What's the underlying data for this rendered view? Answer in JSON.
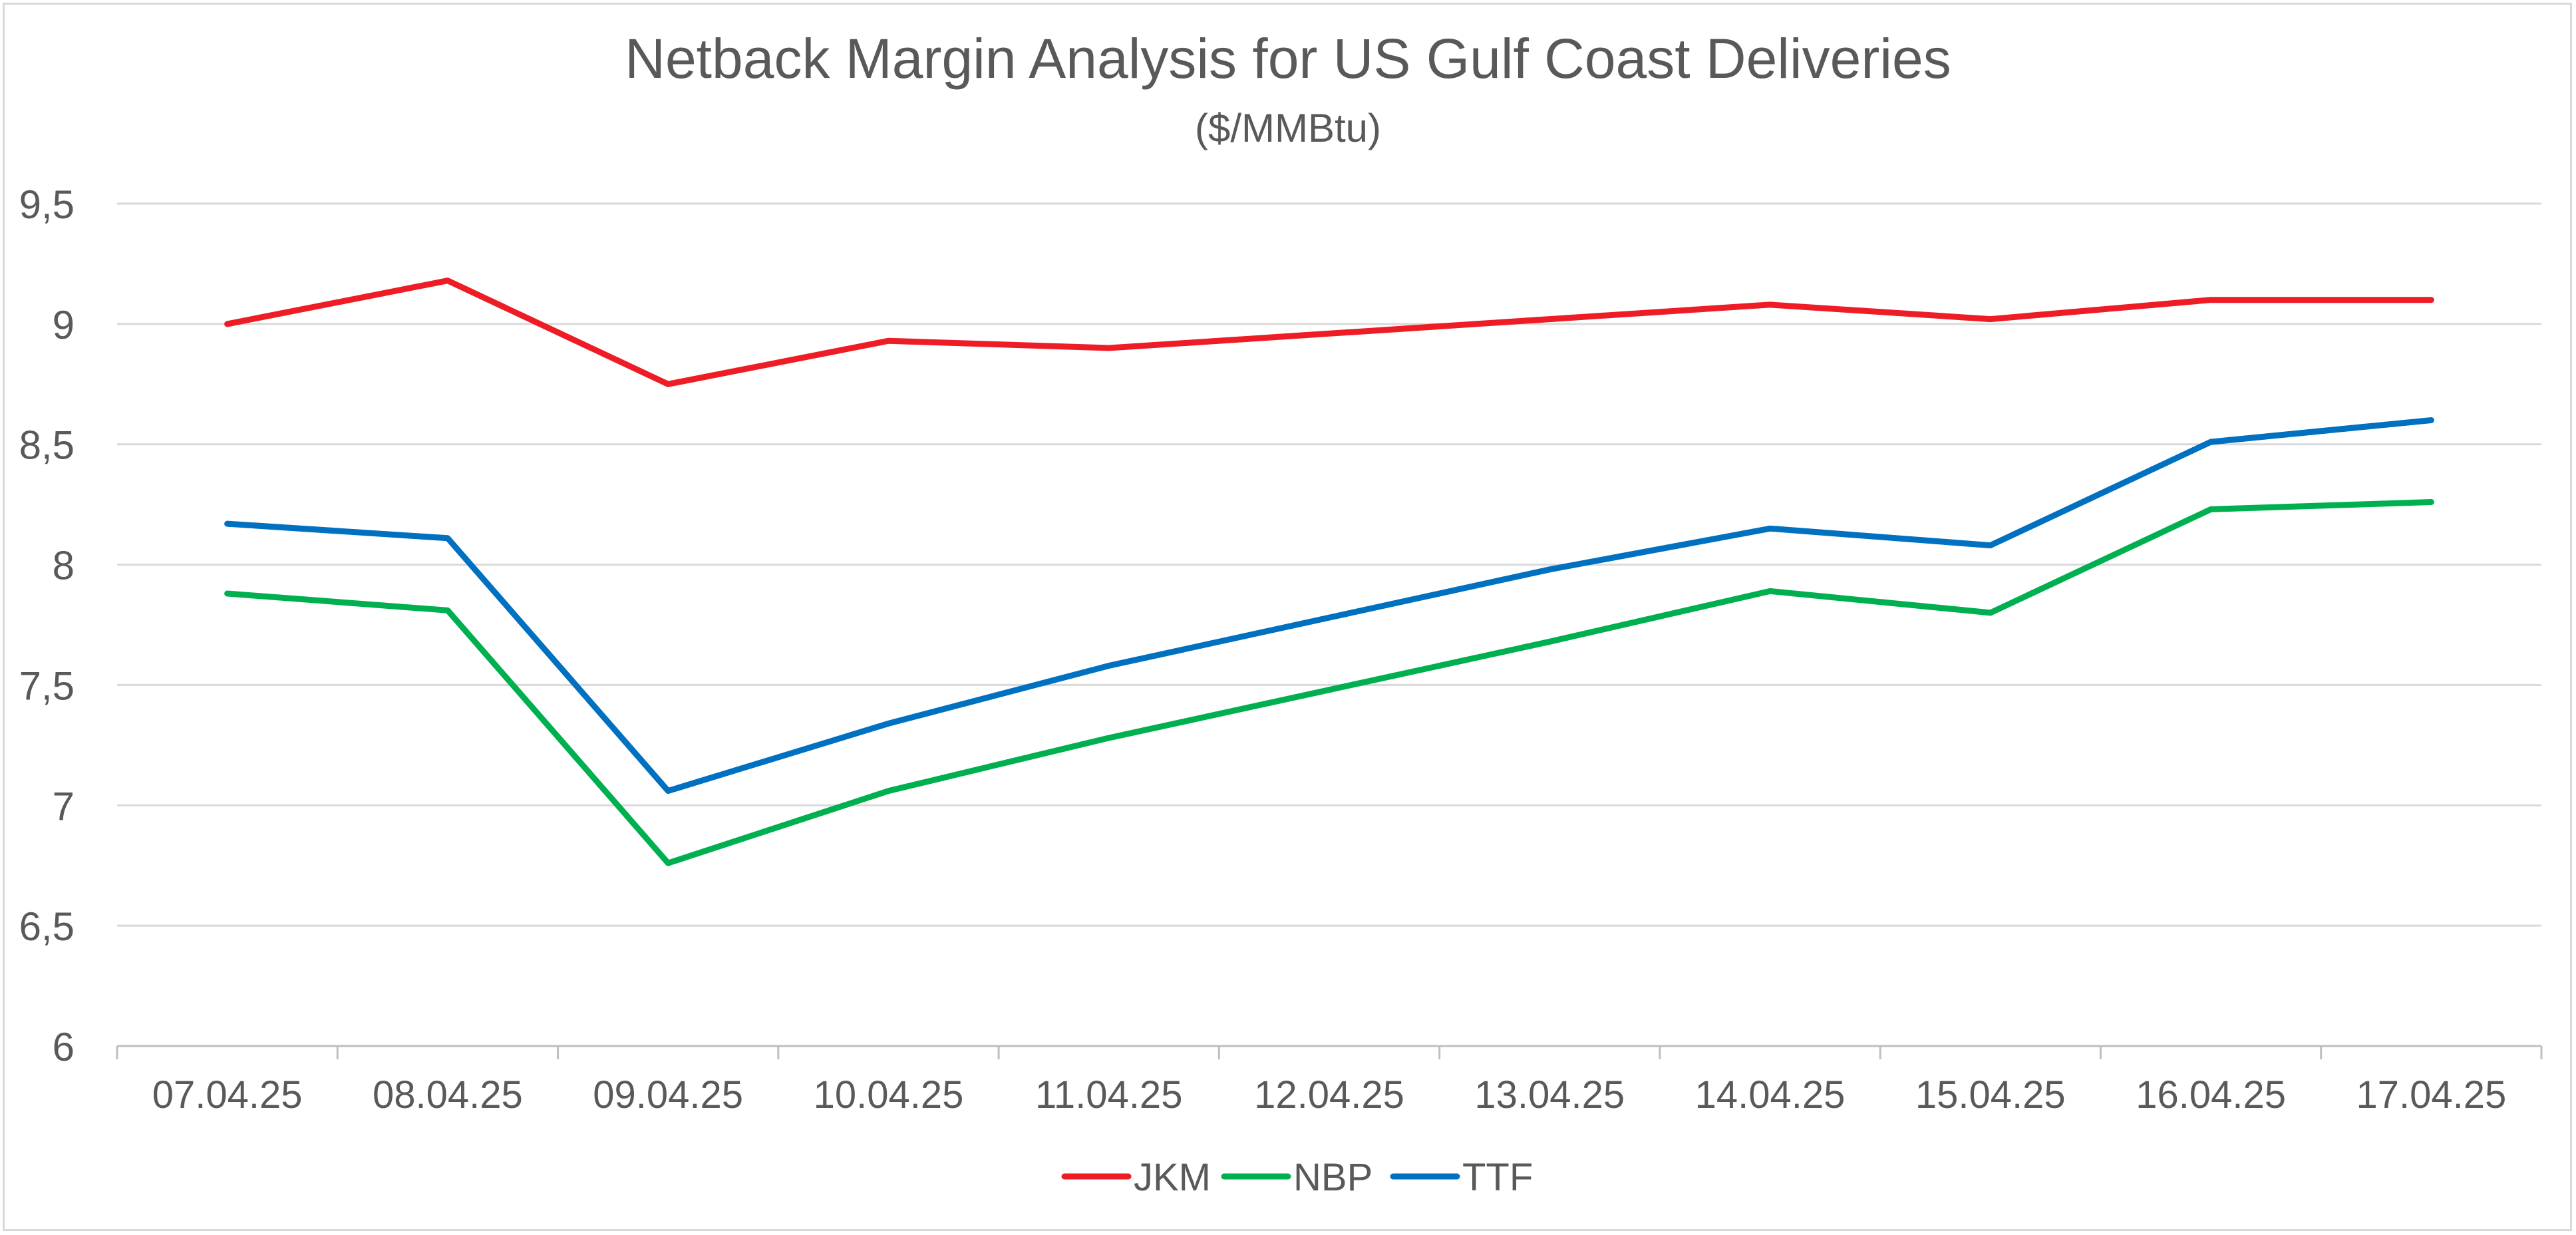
{
  "chart_data": {
    "type": "line",
    "title": "Netback Margin Analysis for US Gulf Coast Deliveries",
    "subtitle": "($/MMBtu)",
    "xlabel": "",
    "ylabel": "",
    "categories": [
      "07.04.25",
      "08.04.25",
      "09.04.25",
      "10.04.25",
      "11.04.25",
      "12.04.25",
      "13.04.25",
      "14.04.25",
      "15.04.25",
      "16.04.25",
      "17.04.25"
    ],
    "y_ticks": [
      "6",
      "6,5",
      "7",
      "7,5",
      "8",
      "8,5",
      "9",
      "9,5"
    ],
    "ylim": [
      6,
      9.5
    ],
    "grid": true,
    "legend_position": "bottom",
    "series": [
      {
        "name": "JKM",
        "color": "#ee1c25",
        "values": [
          9.0,
          9.18,
          8.75,
          8.93,
          8.9,
          8.96,
          9.02,
          9.08,
          9.02,
          9.1,
          9.1
        ]
      },
      {
        "name": "NBP",
        "color": "#00b050",
        "values": [
          7.88,
          7.81,
          6.76,
          7.06,
          7.28,
          7.48,
          7.68,
          7.89,
          7.8,
          8.23,
          8.26
        ]
      },
      {
        "name": "TTF",
        "color": "#0070c0",
        "values": [
          8.17,
          8.11,
          7.06,
          7.34,
          7.58,
          7.78,
          7.98,
          8.15,
          8.08,
          8.51,
          8.6
        ]
      }
    ]
  }
}
